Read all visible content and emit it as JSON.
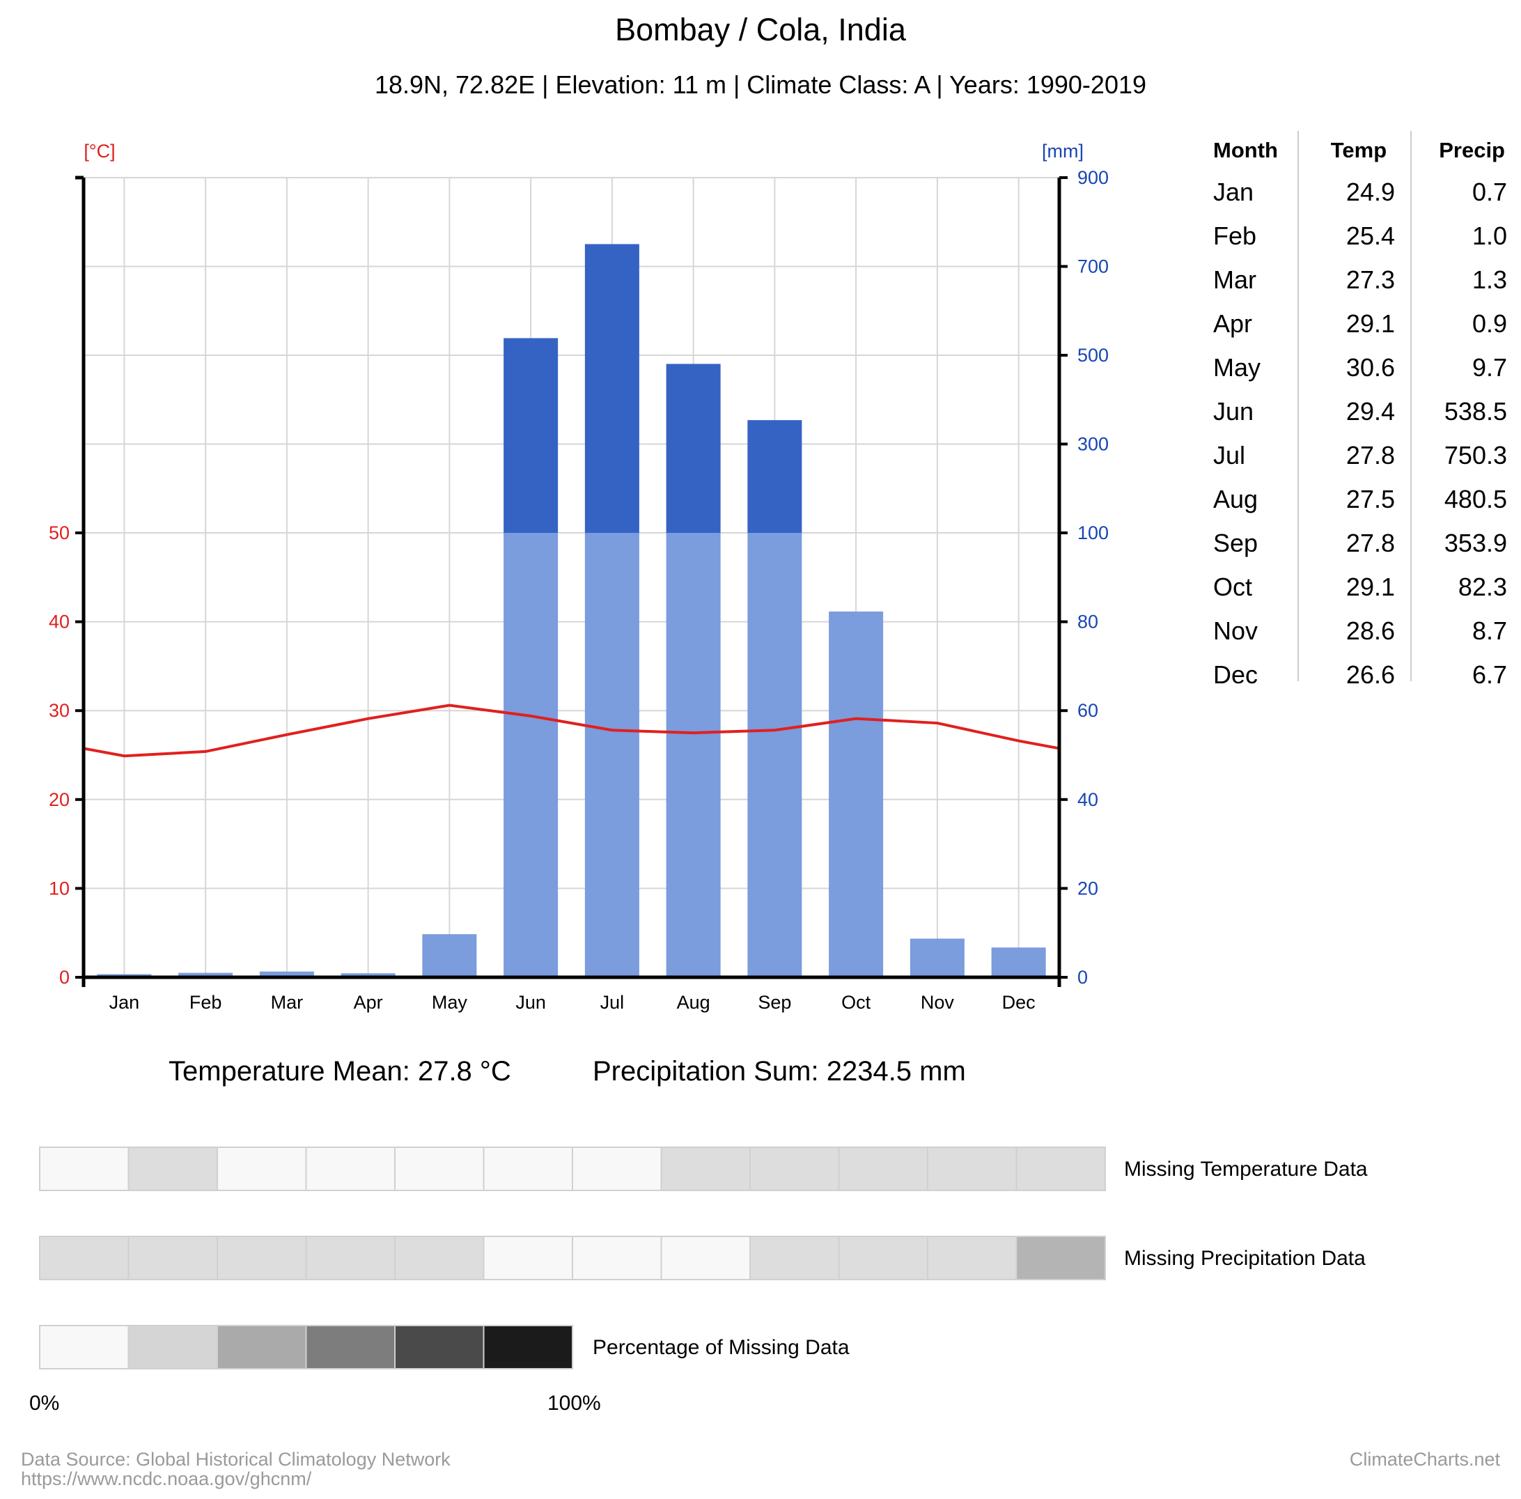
{
  "header": {
    "title": "Bombay / Cola, India",
    "subtitle": "18.9N, 72.82E | Elevation: 11 m | Climate Class: A | Years: 1990-2019"
  },
  "chart_data": {
    "type": "bar",
    "categories": [
      "Jan",
      "Feb",
      "Mar",
      "Apr",
      "May",
      "Jun",
      "Jul",
      "Aug",
      "Sep",
      "Oct",
      "Nov",
      "Dec"
    ],
    "series": [
      {
        "kind": "bar",
        "axis": "right",
        "values": [
          0.7,
          1.0,
          1.3,
          0.9,
          9.7,
          538.5,
          750.3,
          480.5,
          353.9,
          82.3,
          8.7,
          6.7
        ]
      },
      {
        "kind": "line",
        "axis": "left",
        "values": [
          24.9,
          25.4,
          27.3,
          29.1,
          30.6,
          29.4,
          27.8,
          27.5,
          27.8,
          29.1,
          28.6,
          26.6
        ]
      }
    ],
    "left_axis": {
      "unit": "[°C]",
      "ticks": [
        "0",
        "10",
        "20",
        "30",
        "40",
        "50"
      ],
      "ylim": [
        0,
        50
      ],
      "color": "#e0201e"
    },
    "right_axis": {
      "unit": "[mm]",
      "ticks": [
        "0",
        "20",
        "40",
        "60",
        "80",
        "100",
        "300",
        "500",
        "700",
        "900"
      ],
      "scale": "piecewise: 0-100 linear, 100-900 compressed",
      "color": "#1846b5"
    },
    "grid": true,
    "colors": {
      "temp_line": "#e0201e",
      "precip_low": "#7b9cdd",
      "precip_high": "#3563c4"
    }
  },
  "table": {
    "headers": [
      "Month",
      "Temp",
      "Precip"
    ],
    "rows": [
      [
        "Jan",
        "24.9",
        "0.7"
      ],
      [
        "Feb",
        "25.4",
        "1.0"
      ],
      [
        "Mar",
        "27.3",
        "1.3"
      ],
      [
        "Apr",
        "29.1",
        "0.9"
      ],
      [
        "May",
        "30.6",
        "9.7"
      ],
      [
        "Jun",
        "29.4",
        "538.5"
      ],
      [
        "Jul",
        "27.8",
        "750.3"
      ],
      [
        "Aug",
        "27.5",
        "480.5"
      ],
      [
        "Sep",
        "27.8",
        "353.9"
      ],
      [
        "Oct",
        "29.1",
        "82.3"
      ],
      [
        "Nov",
        "28.6",
        "8.7"
      ],
      [
        "Dec",
        "26.6",
        "6.7"
      ]
    ]
  },
  "summary": {
    "temp_mean": "Temperature Mean: 27.8 °C",
    "precip_sum": "Precipitation Sum: 2234.5 mm"
  },
  "missing": {
    "temp_label": "Missing Temperature Data",
    "precip_label": "Missing Precipitation Data",
    "scale_label": "Percentage of Missing Data",
    "temp_cells": [
      "#f8f8f8",
      "#dddddd",
      "#f8f8f8",
      "#f8f8f8",
      "#f8f8f8",
      "#f8f8f8",
      "#f8f8f8",
      "#dddddd",
      "#dddddd",
      "#dddddd",
      "#dddddd",
      "#dddddd"
    ],
    "precip_cells": [
      "#dddddd",
      "#dddddd",
      "#dddddd",
      "#dddddd",
      "#dddddd",
      "#f8f8f8",
      "#f8f8f8",
      "#f8f8f8",
      "#dddddd",
      "#dddddd",
      "#dddddd",
      "#b4b4b4"
    ],
    "scale_cells": [
      "#f8f8f8",
      "#d5d5d5",
      "#aaaaaa",
      "#7d7d7d",
      "#4a4a4a",
      "#1b1b1b"
    ],
    "scale_min": "0%",
    "scale_max": "100%"
  },
  "footer": {
    "source_line1": "Data Source: Global Historical Climatology Network",
    "source_line2": "https://www.ncdc.noaa.gov/ghcnm/",
    "brand": "ClimateCharts.net"
  }
}
